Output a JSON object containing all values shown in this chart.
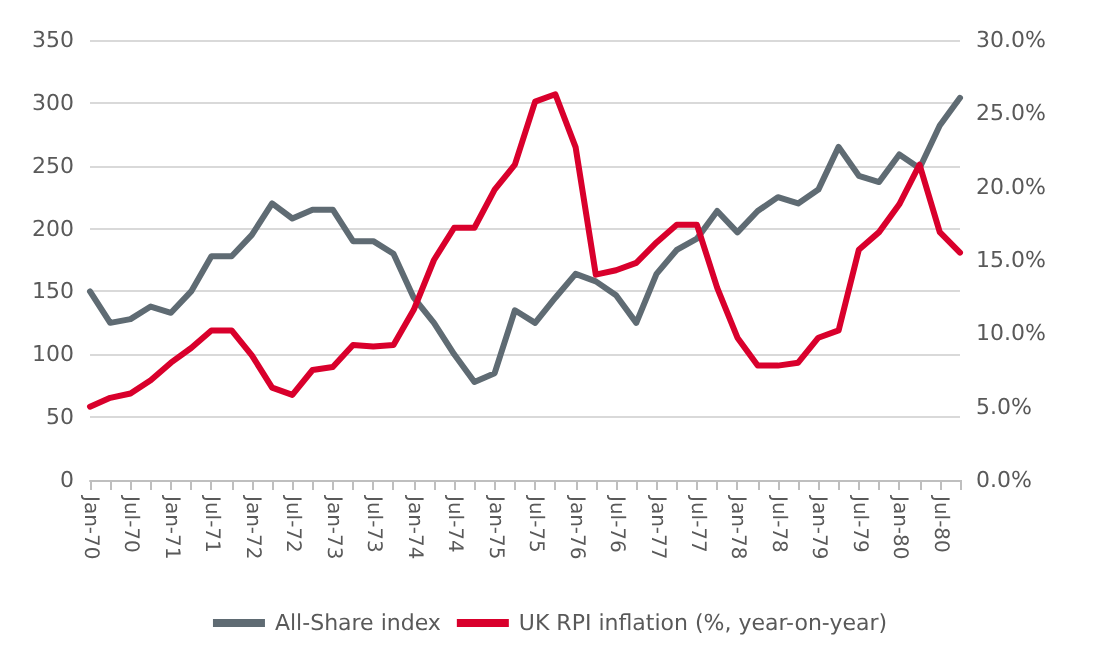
{
  "chart_data": {
    "type": "line",
    "categories": [
      "Jan-70",
      null,
      "Jul-70",
      null,
      "Jan-71",
      null,
      "Jul-71",
      null,
      "Jan-72",
      null,
      "Jul-72",
      null,
      "Jan-73",
      null,
      "Jul-73",
      null,
      "Jan-74",
      null,
      "Jul-74",
      null,
      "Jan-75",
      null,
      "Jul-75",
      null,
      "Jan-76",
      null,
      "Jul-76",
      null,
      "Jan-77",
      null,
      "Jul-77",
      null,
      "Jan-78",
      null,
      "Jul-78",
      null,
      "Jan-79",
      null,
      "Jul-79",
      null,
      "Jan-80",
      null,
      "Jul-80",
      null
    ],
    "series": [
      {
        "name": "All-Share index",
        "color": "#5f6b73",
        "values": [
          150,
          125,
          128,
          138,
          133,
          150,
          178,
          178,
          195,
          220,
          208,
          215,
          215,
          190,
          190,
          180,
          145,
          125,
          100,
          78,
          85,
          135,
          125,
          145,
          164,
          158,
          147,
          125,
          164,
          183,
          192,
          214,
          197,
          214,
          225,
          220,
          231,
          265,
          242,
          237,
          259,
          248,
          282,
          304
        ]
      },
      {
        "name": "UK RPI inflation (%, year-on-year)",
        "color": "#d9002c",
        "axis": "y2",
        "values": [
          5.0,
          5.6,
          5.9,
          6.8,
          8.0,
          9.0,
          10.2,
          10.2,
          8.5,
          6.3,
          5.8,
          7.5,
          7.7,
          9.2,
          9.1,
          9.2,
          11.6,
          15.0,
          17.2,
          17.2,
          19.8,
          21.5,
          25.8,
          26.3,
          22.7,
          14.0,
          14.3,
          14.8,
          16.2,
          17.4,
          17.4,
          13.1,
          9.7,
          7.8,
          7.8,
          8.0,
          9.7,
          10.2,
          15.7,
          16.9,
          18.8,
          21.5,
          16.9,
          15.5
        ]
      }
    ],
    "ylim": [
      0,
      350
    ],
    "yticks": [
      0,
      50,
      100,
      150,
      200,
      250,
      300,
      350
    ],
    "y2lim": [
      0,
      30
    ],
    "y2ticks": [
      {
        "value": 0,
        "label": "0.0%"
      },
      {
        "value": 5,
        "label": "5.0%"
      },
      {
        "value": 10,
        "label": "10.0%"
      },
      {
        "value": 15,
        "label": "15.0%"
      },
      {
        "value": 20,
        "label": "20.0%"
      },
      {
        "value": 25,
        "label": "25.0%"
      },
      {
        "value": 30,
        "label": "30.0%"
      }
    ],
    "grid": "y",
    "legend": "bottom",
    "marker": "none",
    "line_style": "solid"
  }
}
